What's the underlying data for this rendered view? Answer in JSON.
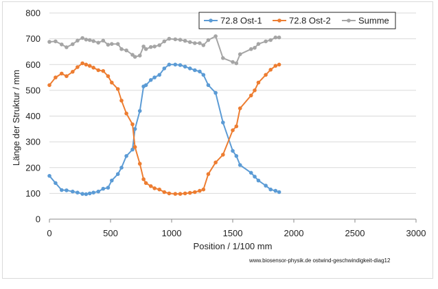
{
  "chart_data": {
    "type": "line",
    "xlabel": "Position  /  1/100 mm",
    "ylabel": "Länge der Struktur  /  mm",
    "xlim": [
      0,
      3000
    ],
    "ylim": [
      0,
      800
    ],
    "x_ticks": [
      0,
      500,
      1000,
      1500,
      2000,
      2500,
      3000
    ],
    "y_ticks": [
      0,
      100,
      200,
      300,
      400,
      500,
      600,
      700,
      800
    ],
    "grid": "horizontal",
    "legend_position": "top-right",
    "footnote": "www.biosensor-physik.de  ostwind-geschwindigkeit-diag12",
    "series": [
      {
        "name": "72.8 Ost-1",
        "color": "#5b9bd5",
        "x": [
          0,
          50,
          100,
          140,
          190,
          230,
          270,
          300,
          330,
          360,
          400,
          440,
          480,
          510,
          560,
          590,
          630,
          680,
          700,
          740,
          770,
          790,
          830,
          860,
          900,
          940,
          980,
          1030,
          1070,
          1110,
          1150,
          1190,
          1230,
          1260,
          1300,
          1360,
          1420,
          1500,
          1530,
          1560,
          1650,
          1680,
          1710,
          1770,
          1810,
          1850,
          1880
        ],
        "y": [
          168,
          140,
          113,
          112,
          107,
          103,
          98,
          97,
          100,
          103,
          107,
          118,
          122,
          150,
          175,
          200,
          245,
          270,
          350,
          420,
          515,
          520,
          540,
          550,
          560,
          585,
          600,
          600,
          598,
          592,
          585,
          578,
          573,
          560,
          520,
          490,
          375,
          265,
          245,
          210,
          180,
          165,
          150,
          130,
          115,
          110,
          105
        ]
      },
      {
        "name": "72.8 Ost-2",
        "color": "#ed7d31",
        "x": [
          0,
          50,
          100,
          140,
          190,
          230,
          270,
          300,
          330,
          360,
          400,
          440,
          480,
          510,
          560,
          590,
          630,
          680,
          700,
          740,
          770,
          790,
          830,
          860,
          900,
          940,
          980,
          1030,
          1070,
          1110,
          1150,
          1190,
          1230,
          1260,
          1300,
          1360,
          1420,
          1500,
          1530,
          1560,
          1650,
          1680,
          1710,
          1770,
          1810,
          1850,
          1880
        ],
        "y": [
          520,
          550,
          565,
          555,
          572,
          590,
          605,
          600,
          595,
          588,
          578,
          575,
          555,
          530,
          505,
          460,
          410,
          368,
          280,
          215,
          155,
          140,
          128,
          120,
          115,
          105,
          100,
          98,
          98,
          100,
          102,
          105,
          110,
          115,
          175,
          220,
          250,
          345,
          360,
          430,
          480,
          500,
          530,
          560,
          580,
          595,
          600
        ]
      },
      {
        "name": "Summe",
        "color": "#a5a5a5",
        "x": [
          0,
          50,
          100,
          140,
          190,
          230,
          270,
          300,
          330,
          360,
          400,
          440,
          480,
          510,
          560,
          590,
          630,
          680,
          700,
          740,
          770,
          790,
          830,
          860,
          900,
          940,
          980,
          1030,
          1070,
          1110,
          1150,
          1190,
          1230,
          1260,
          1300,
          1360,
          1420,
          1500,
          1530,
          1560,
          1650,
          1680,
          1710,
          1770,
          1810,
          1850,
          1880
        ],
        "y": [
          688,
          690,
          678,
          667,
          679,
          693,
          703,
          697,
          695,
          691,
          685,
          693,
          677,
          680,
          680,
          660,
          655,
          638,
          630,
          635,
          670,
          660,
          668,
          670,
          675,
          690,
          700,
          698,
          696,
          692,
          687,
          683,
          683,
          675,
          695,
          710,
          625,
          610,
          605,
          640,
          660,
          665,
          680,
          690,
          695,
          705,
          705
        ]
      }
    ]
  }
}
